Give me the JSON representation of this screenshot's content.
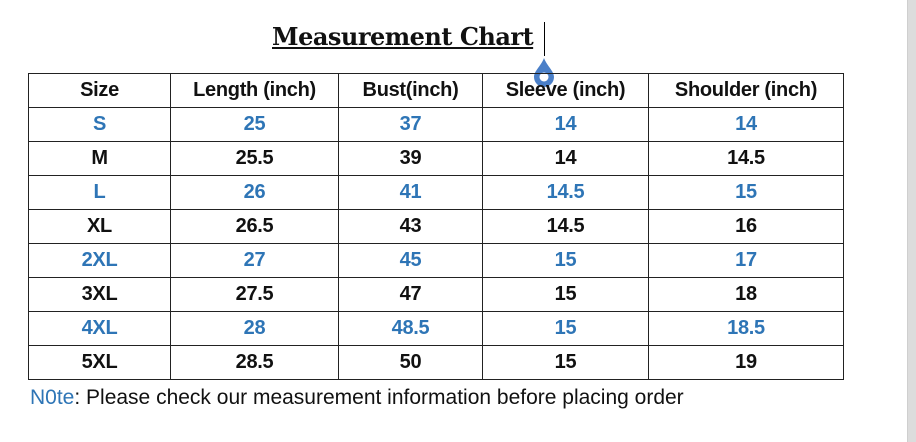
{
  "title": "Measurement Chart",
  "table": {
    "headers": [
      "Size",
      "Length (inch)",
      "Bust(inch)",
      "Sleeve (inch)",
      "Shoulder (inch)"
    ],
    "rows": [
      [
        "S",
        "25",
        "37",
        "14",
        "14"
      ],
      [
        "M",
        "25.5",
        "39",
        "14",
        "14.5"
      ],
      [
        "L",
        "26",
        "41",
        "14.5",
        "15"
      ],
      [
        "XL",
        "26.5",
        "43",
        "14.5",
        "16"
      ],
      [
        "2XL",
        "27",
        "45",
        "15",
        "17"
      ],
      [
        "3XL",
        "27.5",
        "47",
        "15",
        "18"
      ],
      [
        "4XL",
        "28",
        "48.5",
        "15",
        "18.5"
      ],
      [
        "5XL",
        "28.5",
        "50",
        "15",
        "19"
      ]
    ]
  },
  "note": {
    "label": "N0te",
    "text": ": Please check our measurement information before placing order"
  },
  "colors": {
    "accent": "#2e75b6",
    "handle": "#4a7fc8"
  }
}
